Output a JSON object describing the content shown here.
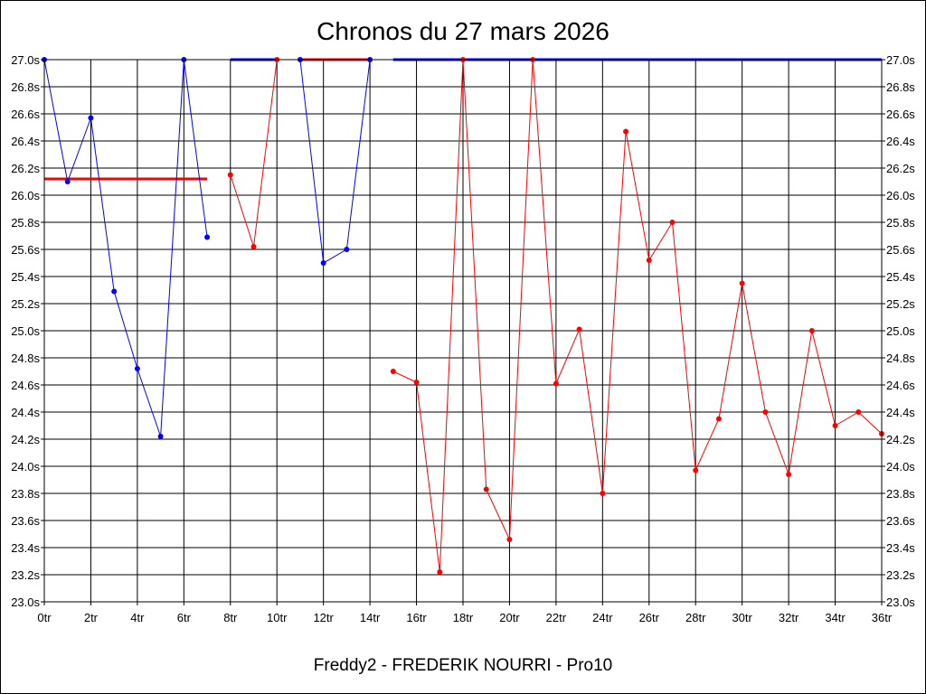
{
  "chart_data": {
    "type": "line",
    "title": "Chronos du 27 mars 2026",
    "footer": "Freddy2 - FREDERIK NOURRI - Pro10",
    "xlim": [
      0,
      36
    ],
    "ylim": [
      23.0,
      27.0
    ],
    "grid": true,
    "x_ticks": [
      "0tr",
      "2tr",
      "4tr",
      "6tr",
      "8tr",
      "10tr",
      "12tr",
      "14tr",
      "16tr",
      "18tr",
      "20tr",
      "22tr",
      "24tr",
      "26tr",
      "28tr",
      "30tr",
      "32tr",
      "34tr",
      "36tr"
    ],
    "y_ticks": [
      "27.0s",
      "26.8s",
      "26.6s",
      "26.4s",
      "26.2s",
      "26.0s",
      "25.8s",
      "25.6s",
      "25.4s",
      "25.2s",
      "25.0s",
      "24.8s",
      "24.6s",
      "24.4s",
      "24.2s",
      "24.0s",
      "23.8s",
      "23.6s",
      "23.4s",
      "23.2s",
      "23.0s"
    ],
    "colors": {
      "blue": "#0000ff",
      "red": "#ff0000"
    },
    "series": [
      {
        "color": "#0000ff",
        "x": [
          0,
          1,
          2,
          3,
          4,
          5,
          6,
          7
        ],
        "y": [
          27.0,
          26.1,
          26.57,
          25.29,
          24.72,
          24.22,
          27.0,
          25.69
        ]
      },
      {
        "color": "#ff0000",
        "x": [
          8,
          9,
          10
        ],
        "y": [
          26.15,
          25.62,
          27.0
        ]
      },
      {
        "color": "#0000ff",
        "x": [
          11,
          12,
          13,
          14
        ],
        "y": [
          27.0,
          25.5,
          25.6,
          27.0
        ]
      },
      {
        "color": "#ff0000",
        "x": [
          15,
          16,
          17,
          18,
          19,
          20,
          21,
          22,
          23,
          24,
          25,
          26,
          27,
          28,
          29,
          30,
          31,
          32,
          33,
          34,
          35,
          36
        ],
        "y": [
          24.7,
          24.62,
          23.22,
          27.0,
          23.83,
          23.46,
          27.0,
          24.61,
          25.01,
          23.8,
          26.47,
          25.52,
          25.8,
          23.97,
          24.35,
          25.35,
          24.4,
          23.94,
          25.0,
          24.3,
          24.4,
          24.24
        ]
      }
    ],
    "ref_lines": [
      {
        "color": "#ff0000",
        "x": [
          0,
          7
        ],
        "y": 26.12,
        "width": 3
      },
      {
        "color": "#0000ff",
        "x": [
          8,
          10
        ],
        "y": 27.0,
        "width": 3
      },
      {
        "color": "#ff0000",
        "x": [
          11,
          14
        ],
        "y": 27.0,
        "width": 3
      },
      {
        "color": "#0000ff",
        "x": [
          15,
          36
        ],
        "y": 27.0,
        "width": 3
      }
    ]
  }
}
